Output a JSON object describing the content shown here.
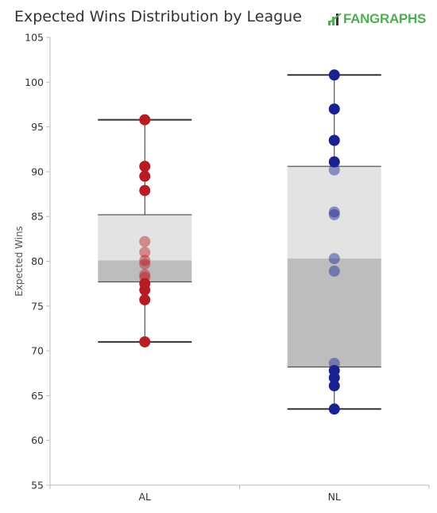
{
  "header": {
    "title": "Expected Wins Distribution by League",
    "logo_text": "FANGRAPHS"
  },
  "chart_data": {
    "type": "box",
    "title": "Expected Wins Distribution by League",
    "xlabel": "",
    "ylabel": "Expected Wins",
    "ylim": [
      55,
      105
    ],
    "yticks": [
      55,
      60,
      65,
      70,
      75,
      80,
      85,
      90,
      95,
      100,
      105
    ],
    "grid": false,
    "categories": [
      "AL",
      "NL"
    ],
    "boxes": [
      {
        "name": "AL",
        "min": 71.0,
        "q1": 77.7,
        "median": 80.1,
        "q3": 85.2,
        "max": 95.8,
        "points": [
          95.8,
          90.6,
          89.5,
          87.9,
          82.2,
          81.0,
          80.1,
          79.7,
          78.5,
          78.2,
          77.5,
          76.8,
          75.7,
          71.0
        ],
        "color": "#b71c24"
      },
      {
        "name": "NL",
        "min": 63.5,
        "q1": 68.2,
        "median": 80.3,
        "q3": 90.6,
        "max": 100.8,
        "points": [
          100.8,
          97.0,
          93.5,
          91.1,
          90.2,
          85.5,
          85.2,
          80.3,
          78.9,
          68.6,
          67.8,
          67.0,
          66.1,
          63.5
        ],
        "color": "#1a2290"
      }
    ],
    "colors": {
      "box_upper": "#e3e3e3",
      "box_lower": "#bdbdbd",
      "whisker": "#333333",
      "axis": "#bbbbbb"
    }
  }
}
